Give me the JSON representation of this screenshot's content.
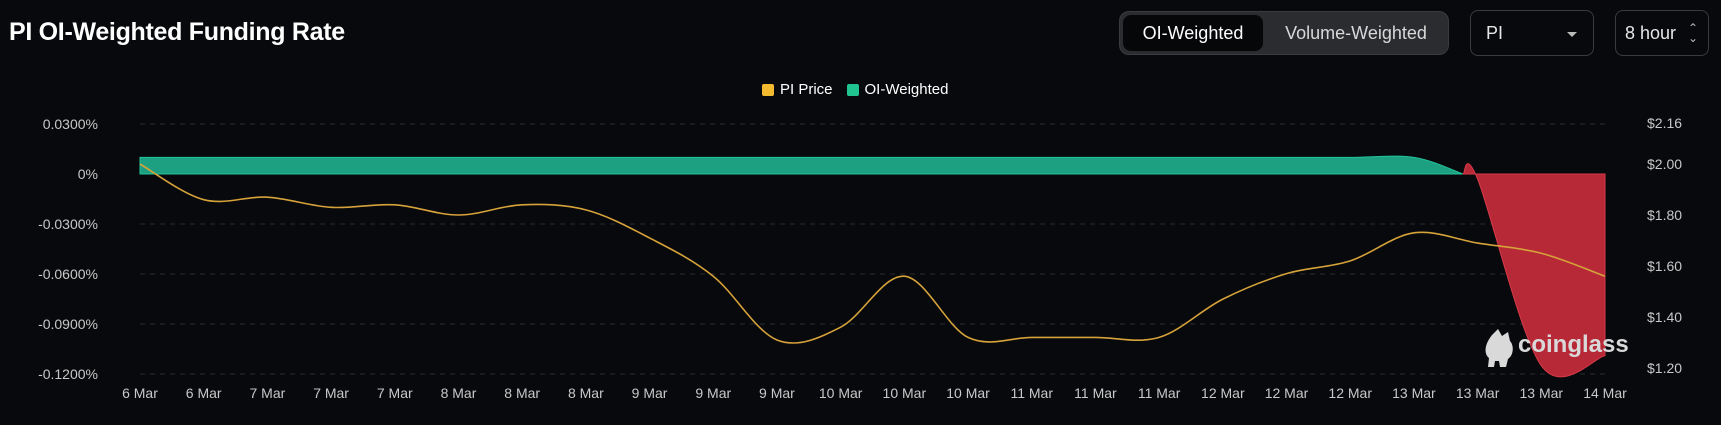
{
  "header": {
    "title": "PI OI-Weighted Funding Rate",
    "tabs": [
      {
        "label": "OI-Weighted",
        "active": true
      },
      {
        "label": "Volume-Weighted",
        "active": false
      }
    ],
    "coin_select": "PI",
    "interval_select": "8 hour"
  },
  "watermark": "coinglass",
  "colors": {
    "price": "#f3ba2f",
    "oi_positive": "#1fa888",
    "oi_negative": "#d03040",
    "background": "#08090c"
  },
  "chart_data": {
    "type": "area",
    "title": "PI OI-Weighted Funding Rate",
    "legend": [
      "PI Price",
      "OI-Weighted"
    ],
    "legend_position": "top-center",
    "grid": true,
    "categories": [
      "6 Mar",
      "6 Mar",
      "7 Mar",
      "7 Mar",
      "7 Mar",
      "8 Mar",
      "8 Mar",
      "8 Mar",
      "9 Mar",
      "9 Mar",
      "9 Mar",
      "10 Mar",
      "10 Mar",
      "10 Mar",
      "11 Mar",
      "11 Mar",
      "11 Mar",
      "12 Mar",
      "12 Mar",
      "12 Mar",
      "13 Mar",
      "13 Mar",
      "13 Mar",
      "14 Mar"
    ],
    "y_left": {
      "ticks": [
        "0.0300%",
        "0%",
        "-0.0300%",
        "-0.0600%",
        "-0.0900%",
        "-0.1200%"
      ],
      "range": [
        -0.12,
        0.03
      ],
      "unit": "%"
    },
    "y_right": {
      "ticks": [
        "$2.16",
        "$2.00",
        "$1.80",
        "$1.60",
        "$1.40",
        "$1.20"
      ],
      "range": [
        1.2,
        2.16
      ],
      "unit": "$"
    },
    "series": [
      {
        "name": "OI-Weighted",
        "axis": "left",
        "values": [
          0.01,
          0.01,
          0.01,
          0.01,
          0.01,
          0.01,
          0.01,
          0.01,
          0.01,
          0.01,
          0.01,
          0.01,
          0.01,
          0.01,
          0.01,
          0.01,
          0.01,
          0.01,
          0.01,
          0.01,
          0.01,
          -0.003,
          -0.115,
          -0.109
        ]
      },
      {
        "name": "PI Price",
        "axis": "right",
        "values": [
          2.0,
          1.86,
          1.87,
          1.83,
          1.84,
          1.8,
          1.84,
          1.82,
          1.71,
          1.56,
          1.31,
          1.36,
          1.56,
          1.32,
          1.32,
          1.32,
          1.32,
          1.47,
          1.57,
          1.62,
          1.73,
          1.69,
          1.65,
          1.56
        ]
      }
    ]
  }
}
